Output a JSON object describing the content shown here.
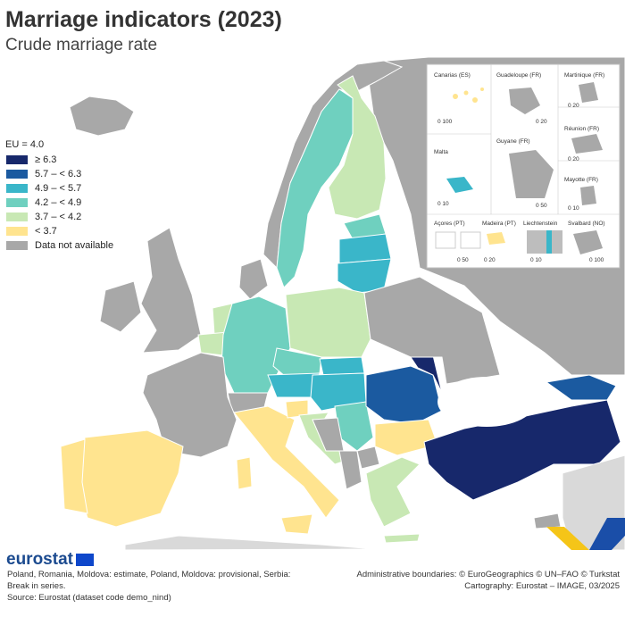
{
  "title": "Marriage indicators (2023)",
  "subtitle": "Crude marriage rate",
  "legend": {
    "eu": "EU = 4.0",
    "items": [
      {
        "label": "≥ 6.3",
        "color": "#17286b"
      },
      {
        "label": "5.7 – < 6.3",
        "color": "#1b5aa0"
      },
      {
        "label": "4.9 – < 5.7",
        "color": "#3ab6c9"
      },
      {
        "label": "4.2 – < 4.9",
        "color": "#6fd0bf"
      },
      {
        "label": "3.7 – < 4.2",
        "color": "#c8e8b4"
      },
      {
        "label": "< 3.7",
        "color": "#ffe48f"
      },
      {
        "label": "Data not available",
        "color": "#a8a8a8"
      }
    ]
  },
  "insets": {
    "canarias": "Canarias (ES)",
    "guadeloupe": "Guadeloupe (FR)",
    "martinique": "Martinique (FR)",
    "reunion": "Réunion (FR)",
    "malta": "Malta",
    "guyane": "Guyane (FR)",
    "mayotte": "Mayotte (FR)",
    "acores": "Açores (PT)",
    "madeira": "Madeira (PT)",
    "liechtenstein": "Liechtenstein",
    "svalbard": "Svalbard (NO)",
    "scale_canarias": "0   100",
    "scale_guadeloupe": "0   20",
    "scale_martinique": "0   20",
    "scale_reunion": "0   20",
    "scale_malta": "0   10",
    "scale_guyane": "0   50",
    "scale_mayotte": "0   10",
    "scale_acores": "0   50",
    "scale_madeira": "0   20",
    "scale_liechtenstein": "0   10",
    "scale_svalbard": "0 100"
  },
  "footer": {
    "brand": "eurostat",
    "note": "Poland, Romania, Moldova: estimate, Poland, Moldova: provisional, Serbia: Break in series.",
    "source": "Source: Eurostat (dataset code demo_nind)",
    "credit_1": "Administrative boundaries: © EuroGeographics © UN–FAO © Turkstat",
    "credit_2": "Cartography: Eurostat – IMAGE, 03/2025"
  }
}
